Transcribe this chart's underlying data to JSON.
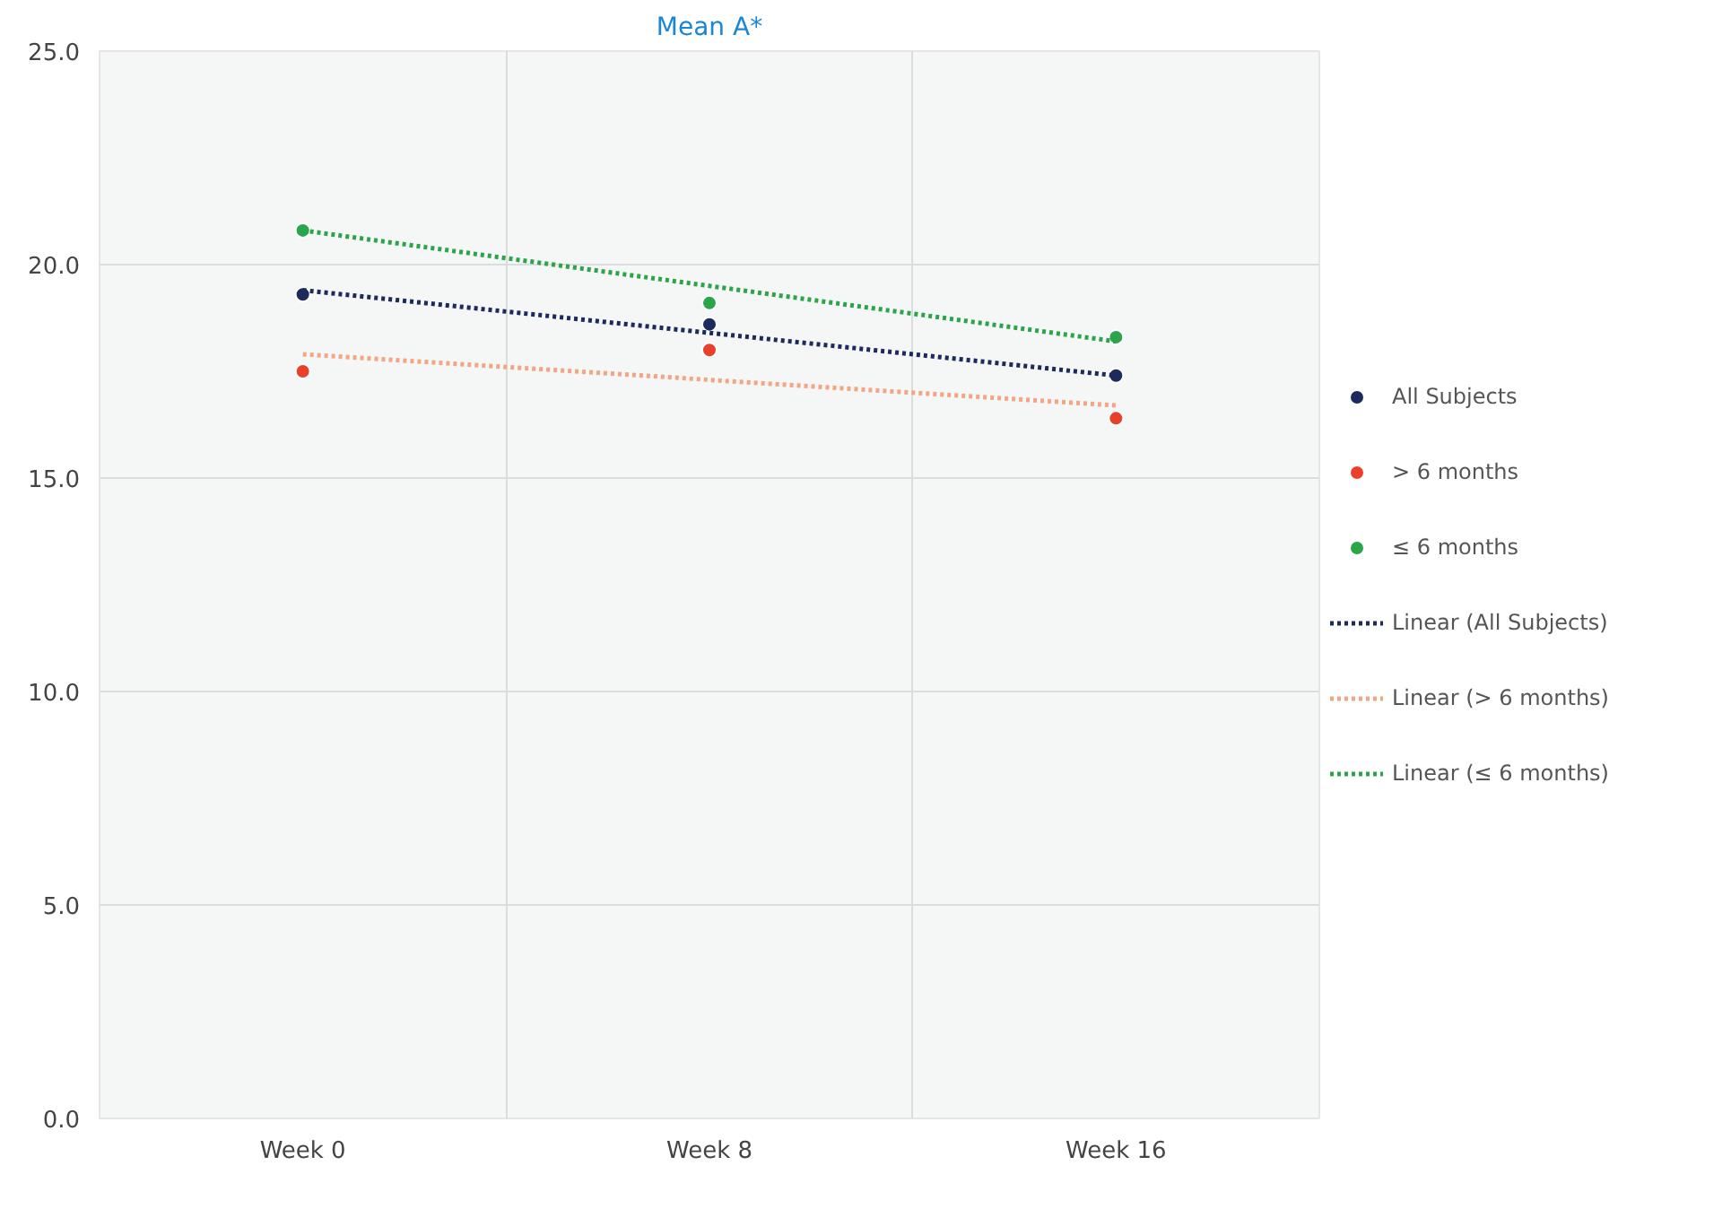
{
  "chart_data": {
    "type": "scatter",
    "title": "Mean A*",
    "categories": [
      "Week 0",
      "Week 8",
      "Week 16"
    ],
    "series": [
      {
        "name": "All Subjects",
        "color": "#1c2a5c",
        "values": [
          19.3,
          18.6,
          17.4
        ],
        "marker": "circle"
      },
      {
        "name": "> 6 months",
        "color": "#e8402a",
        "values": [
          17.5,
          18.0,
          16.4
        ],
        "marker": "circle"
      },
      {
        "name": "≤ 6 months",
        "color": "#2aa54a",
        "values": [
          20.8,
          19.1,
          18.3
        ],
        "marker": "circle"
      },
      {
        "name": "Linear (All Subjects)",
        "type": "line",
        "line_style": "dotted",
        "marker": "none",
        "color": "#1c2a5c",
        "values": [
          19.4,
          18.4,
          17.4
        ]
      },
      {
        "name": "Linear (> 6 months)",
        "type": "line",
        "line_style": "dotted",
        "marker": "none",
        "color": "#f4a582",
        "values": [
          17.9,
          17.3,
          16.7
        ]
      },
      {
        "name": "Linear (≤ 6 months)",
        "type": "line",
        "line_style": "dotted",
        "marker": "none",
        "color": "#2aa54a",
        "values": [
          20.8,
          19.5,
          18.2
        ]
      }
    ],
    "ylim": [
      0,
      25
    ],
    "yticks": [
      {
        "value": 0,
        "label": "0.0"
      },
      {
        "value": 5,
        "label": "5.0"
      },
      {
        "value": 10,
        "label": "10.0"
      },
      {
        "value": 15,
        "label": "15.0"
      },
      {
        "value": 20,
        "label": "20.0"
      },
      {
        "value": 25,
        "label": "25.0"
      }
    ],
    "grid": true,
    "legend": "right"
  }
}
